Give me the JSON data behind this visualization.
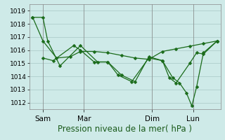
{
  "background_color": "#ceeae8",
  "grid_color": "#a8c8c6",
  "line_color": "#1a6b1a",
  "xlabel": "Pression niveau de la mer( hPa )",
  "xlabel_fontsize": 8.5,
  "ylim": [
    1011.5,
    1019.5
  ],
  "yticks": [
    1012,
    1013,
    1014,
    1015,
    1016,
    1017,
    1018,
    1019
  ],
  "ytick_fontsize": 6.5,
  "xtick_labels": [
    "Sam",
    "Mar",
    "Dim",
    "Lun"
  ],
  "xtick_fontsize": 7.5,
  "xlim": [
    0,
    28
  ],
  "line1_x": [
    0.5,
    2.0,
    2.7,
    4.5,
    7.5,
    10.0,
    11.5,
    13.0,
    15.0,
    17.5,
    19.5,
    20.5,
    21.5,
    23.5,
    24.5,
    25.5,
    27.5
  ],
  "line1_y": [
    1018.5,
    1018.5,
    1016.7,
    1014.8,
    1016.35,
    1015.1,
    1015.1,
    1014.1,
    1013.6,
    1015.4,
    1015.2,
    1013.9,
    1013.5,
    1015.0,
    1015.8,
    1015.7,
    1016.7
  ],
  "line2_x": [
    0.5,
    2.0,
    4.0,
    6.0,
    7.5,
    9.5,
    11.5,
    13.5,
    15.5,
    17.5,
    19.5,
    21.5,
    23.5,
    25.5,
    27.5
  ],
  "line2_y": [
    1018.5,
    1016.7,
    1015.4,
    1015.5,
    1015.9,
    1015.9,
    1015.8,
    1015.6,
    1015.4,
    1015.3,
    1015.9,
    1016.1,
    1016.3,
    1016.5,
    1016.7
  ],
  "line3_x": [
    2.0,
    3.5,
    6.5,
    7.5,
    9.5,
    11.5,
    13.5,
    15.5,
    17.5,
    19.5,
    21.0,
    22.0,
    23.0,
    23.8,
    24.5,
    25.5,
    27.5
  ],
  "line3_y": [
    1015.4,
    1015.2,
    1016.35,
    1016.0,
    1015.1,
    1015.1,
    1014.1,
    1013.6,
    1015.5,
    1015.2,
    1013.9,
    1013.5,
    1012.75,
    1011.75,
    1013.2,
    1015.8,
    1016.7
  ],
  "xtick_positions": [
    2.0,
    8.0,
    18.0,
    24.0
  ]
}
